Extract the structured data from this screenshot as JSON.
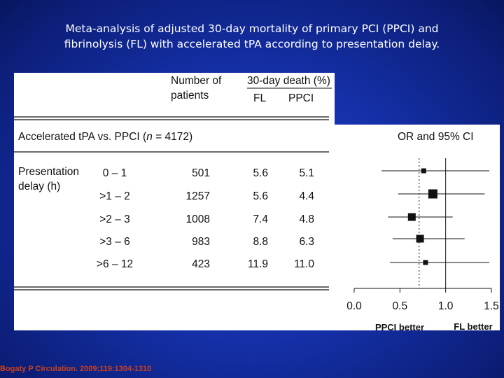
{
  "slide": {
    "title_line1": "Meta-analysis of adjusted 30-day mortality of primary PCI (PPCI) and",
    "title_line2": "fibrinolysis (FL) with accelerated tPA according to presentation delay.",
    "citation": "Bogaty P Circulation. 2009;119:1304-1310"
  },
  "table": {
    "col_number_line1": "Number of",
    "col_number_line2": "patients",
    "col_death_header": "30-day death (%)",
    "col_fl": "FL",
    "col_ppci": "PPCI",
    "comparison_prefix": "Accelerated tPA  vs. PPCI (",
    "comparison_n": "n",
    "comparison_suffix": " = 4172)",
    "group_label_line1": "Presentation",
    "group_label_line2": "delay (h)",
    "rows": [
      {
        "delay": "0 – 1",
        "patients": "501",
        "fl": "5.6",
        "ppci": "5.1"
      },
      {
        "delay": ">1 – 2",
        "patients": "1257",
        "fl": "5.6",
        "ppci": "4.4"
      },
      {
        "delay": ">2 – 3",
        "patients": "1008",
        "fl": "7.4",
        "ppci": "4.8"
      },
      {
        "delay": ">3 – 6",
        "patients": "983",
        "fl": "8.8",
        "ppci": "6.3"
      },
      {
        "delay": ">6 – 12",
        "patients": "423",
        "fl": "11.9",
        "ppci": "11.0"
      }
    ]
  },
  "chart_data": {
    "type": "forest",
    "header": "OR and 95% CI",
    "xlim": [
      0.0,
      1.5
    ],
    "x_ticks": [
      "0.0",
      "0.5",
      "1.0",
      "1.5"
    ],
    "x_tick_values": [
      0.0,
      0.5,
      1.0,
      1.5
    ],
    "reference_line": 1.0,
    "pooled_estimate_dotted": 0.71,
    "left_label": "PPCI better",
    "right_label": "FL better",
    "rows": [
      {
        "category": "0 – 1",
        "or": 0.76,
        "ci_low": 0.3,
        "ci_high": 1.5,
        "weight": "small"
      },
      {
        "category": ">1 – 2",
        "or": 0.86,
        "ci_low": 0.48,
        "ci_high": 1.45,
        "weight": "large"
      },
      {
        "category": ">2 – 3",
        "or": 0.63,
        "ci_low": 0.37,
        "ci_high": 1.1,
        "weight": "medium"
      },
      {
        "category": ">3 – 6",
        "or": 0.72,
        "ci_low": 0.42,
        "ci_high": 1.23,
        "weight": "medium"
      },
      {
        "category": ">6 – 12",
        "or": 0.78,
        "ci_low": 0.39,
        "ci_high": 1.5,
        "weight": "small"
      }
    ]
  },
  "colors": {
    "background": "#1530a8",
    "title_text": "#ffffff",
    "citation_text": "#c8401e",
    "panel": "#ffffff",
    "ink": "#111111"
  }
}
